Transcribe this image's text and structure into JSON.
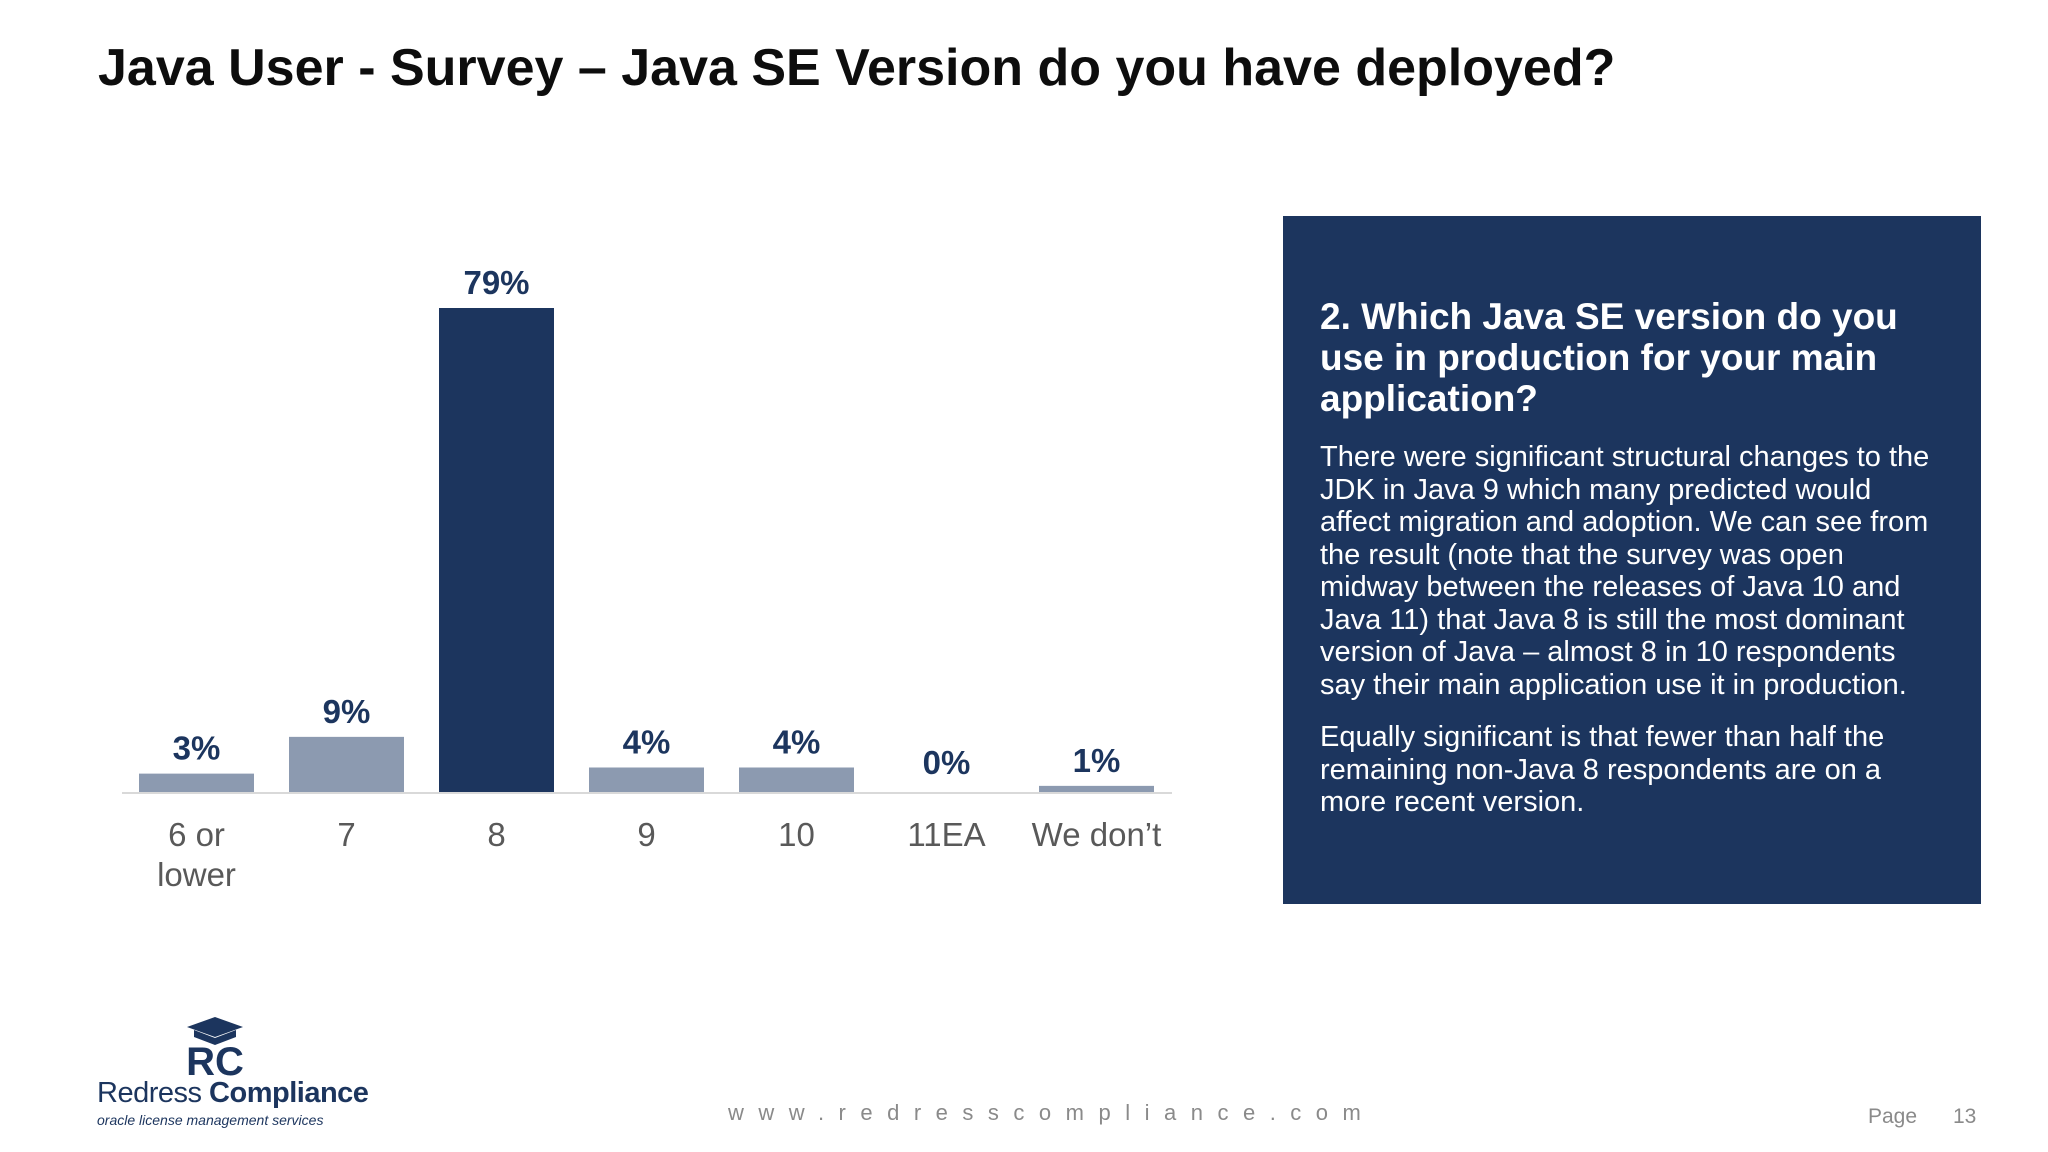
{
  "title": "Java User - Survey – Java SE Version do you have deployed?",
  "chart_data": {
    "type": "bar",
    "categories": [
      [
        "6 or",
        "lower"
      ],
      [
        "7"
      ],
      [
        "8"
      ],
      [
        "9"
      ],
      [
        "10"
      ],
      [
        "11EA"
      ],
      [
        "We don’t"
      ]
    ],
    "values": [
      3,
      9,
      79,
      4,
      4,
      0,
      1
    ],
    "data_labels": [
      "3%",
      "9%",
      "79%",
      "4%",
      "4%",
      "0%",
      "1%"
    ],
    "highlight_index": 2,
    "colors": {
      "default": "#8c9ab0",
      "highlight": "#1c355e",
      "label": "#1c355e"
    },
    "ylim": [
      0,
      79
    ],
    "grid": false,
    "legend": "none"
  },
  "panel": {
    "heading": "2. Which Java SE version do you use in production for your main application?",
    "paragraphs": [
      "There were significant structural changes to the JDK in Java 9 which many predicted would affect migration and adoption. We can see from the result (note that the survey was open midway between the releases of Java 10 and Java 11) that Java 8 is still the most dominant version of Java – almost 8 in 10 respondents say their main application use it in production.",
      "Equally significant is that fewer than half the remaining non-Java 8 respondents are on a more recent version."
    ],
    "background": "#1c355e"
  },
  "logo": {
    "mark": "RC",
    "name_light": "Redress ",
    "name_bold": "Compliance",
    "tagline": "oracle license management services"
  },
  "footer": {
    "website": "www.redresscompliance.com",
    "page_word": "Page",
    "page_number": "13"
  }
}
